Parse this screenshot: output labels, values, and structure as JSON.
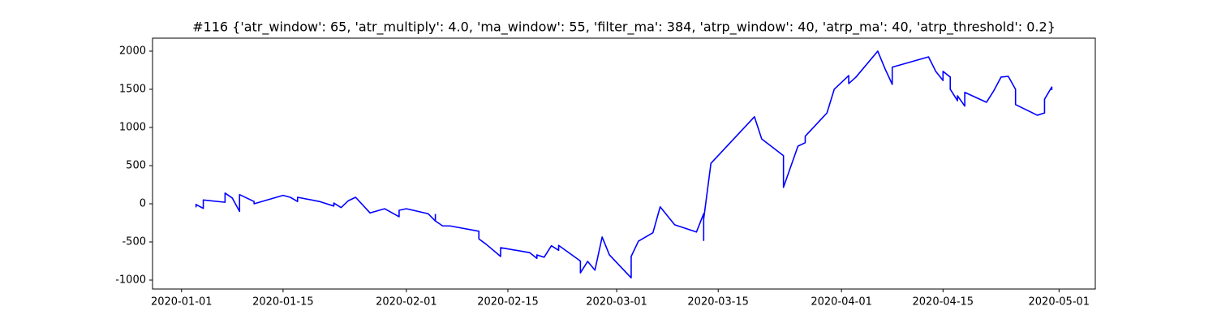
{
  "chart_data": {
    "type": "line",
    "title": "#116 {'atr_window': 65, 'atr_multiply': 4.0, 'ma_window': 55, 'filter_ma': 384, 'atrp_window': 40, 'atrp_ma': 40, 'atrp_threshold': 0.2}",
    "color": "blue",
    "x": [
      "2020-01-03",
      "2020-01-03",
      "2020-01-03",
      "2020-01-03",
      "2020-01-04",
      "2020-01-04",
      "2020-01-07",
      "2020-01-07",
      "2020-01-08",
      "2020-01-09",
      "2020-01-09",
      "2020-01-11",
      "2020-01-11",
      "2020-01-15",
      "2020-01-16",
      "2020-01-17",
      "2020-01-17",
      "2020-01-20",
      "2020-01-22",
      "2020-01-22",
      "2020-01-23",
      "2020-01-24",
      "2020-01-25",
      "2020-01-27",
      "2020-01-29",
      "2020-01-31",
      "2020-01-31",
      "2020-02-01",
      "2020-02-04",
      "2020-02-05",
      "2020-02-05",
      "2020-02-05",
      "2020-02-06",
      "2020-02-07",
      "2020-02-11",
      "2020-02-11",
      "2020-02-12",
      "2020-02-14",
      "2020-02-14",
      "2020-02-18",
      "2020-02-19",
      "2020-02-19",
      "2020-02-20",
      "2020-02-21",
      "2020-02-22",
      "2020-02-22",
      "2020-02-25",
      "2020-02-25",
      "2020-02-26",
      "2020-02-27",
      "2020-02-28",
      "2020-02-29",
      "2020-03-03",
      "2020-03-03",
      "2020-03-04",
      "2020-03-06",
      "2020-03-07",
      "2020-03-09",
      "2020-03-12",
      "2020-03-13",
      "2020-03-13",
      "2020-03-13",
      "2020-03-14",
      "2020-03-20",
      "2020-03-21",
      "2020-03-24",
      "2020-03-24",
      "2020-03-26",
      "2020-03-27",
      "2020-03-27",
      "2020-03-30",
      "2020-03-31",
      "2020-04-02",
      "2020-04-02",
      "2020-04-03",
      "2020-04-06",
      "2020-04-07",
      "2020-04-08",
      "2020-04-08",
      "2020-04-13",
      "2020-04-14",
      "2020-04-15",
      "2020-04-15",
      "2020-04-16",
      "2020-04-16",
      "2020-04-17",
      "2020-04-17",
      "2020-04-18",
      "2020-04-18",
      "2020-04-21",
      "2020-04-22",
      "2020-04-23",
      "2020-04-24",
      "2020-04-25",
      "2020-04-25",
      "2020-04-28",
      "2020-04-29",
      "2020-04-29",
      "2020-04-30",
      "2020-04-30"
    ],
    "values": [
      0,
      -10,
      -40,
      -10,
      -60,
      50,
      20,
      140,
      75,
      -100,
      120,
      30,
      0,
      110,
      85,
      30,
      85,
      30,
      -30,
      10,
      -50,
      40,
      85,
      -120,
      -65,
      -170,
      -85,
      -65,
      -130,
      -225,
      -140,
      -225,
      -290,
      -290,
      -360,
      -460,
      -530,
      -690,
      -575,
      -640,
      -715,
      -670,
      -700,
      -550,
      -610,
      -545,
      -750,
      -905,
      -755,
      -870,
      -435,
      -670,
      -970,
      -690,
      -490,
      -380,
      -40,
      -275,
      -370,
      -130,
      -480,
      -200,
      530,
      1140,
      850,
      630,
      215,
      755,
      800,
      885,
      1190,
      1500,
      1680,
      1575,
      1660,
      2000,
      1770,
      1565,
      1790,
      1925,
      1735,
      1615,
      1735,
      1660,
      1500,
      1350,
      1415,
      1280,
      1460,
      1330,
      1480,
      1660,
      1670,
      1500,
      1300,
      1160,
      1190,
      1370,
      1530,
      1490
    ],
    "xlim": [
      "2019-12-28",
      "2020-05-06"
    ],
    "xticks": [
      "2020-01-01",
      "2020-01-15",
      "2020-02-01",
      "2020-02-15",
      "2020-03-01",
      "2020-03-15",
      "2020-04-01",
      "2020-04-15",
      "2020-05-01"
    ],
    "ylim": [
      -1117,
      2170
    ],
    "yticks": [
      -1000,
      -500,
      0,
      500,
      1000,
      1500,
      2000
    ],
    "grid": false
  }
}
